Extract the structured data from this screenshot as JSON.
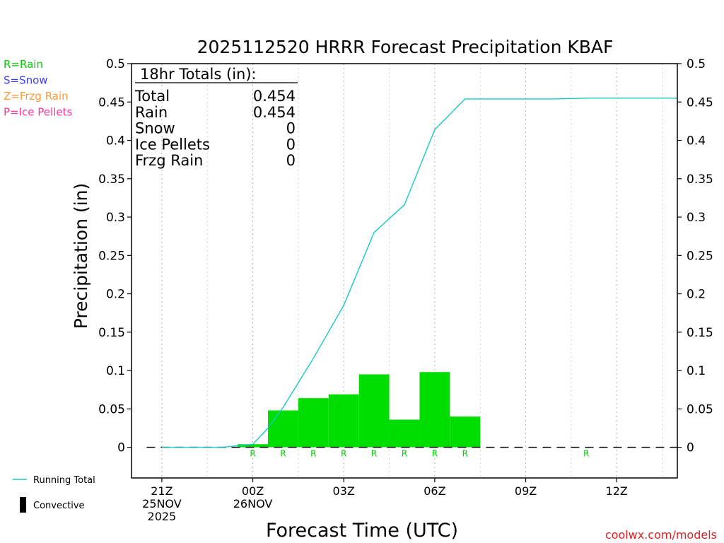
{
  "chart_data": {
    "type": "bar",
    "title": "2025112520 HRRR Forecast Precipitation KBAF",
    "ylabel": "Precipitation (in)",
    "xlabel": "Forecast Time (UTC)",
    "ylim": [
      -0.04,
      0.5
    ],
    "y_ticks": [
      "0.5",
      "0.45",
      "0.4",
      "0.35",
      "0.3",
      "0.25",
      "0.2",
      "0.15",
      "0.1",
      "0.05",
      "0"
    ],
    "y_tick_values": [
      0.5,
      0.45,
      0.4,
      0.35,
      0.3,
      0.25,
      0.2,
      0.15,
      0.1,
      0.05,
      0
    ],
    "x_ticks": [
      {
        "hour": 0,
        "lines": [
          "21Z",
          "25NOV",
          "2025"
        ]
      },
      {
        "hour": 3,
        "lines": [
          "00Z",
          "26NOV"
        ]
      },
      {
        "hour": 6,
        "lines": [
          "03Z"
        ]
      },
      {
        "hour": 9,
        "lines": [
          "06Z"
        ]
      },
      {
        "hour": 12,
        "lines": [
          "09Z"
        ]
      },
      {
        "hour": 15,
        "lines": [
          "12Z"
        ]
      }
    ],
    "x_range_hours": [
      -1,
      17
    ],
    "bars": [
      {
        "start": 2.5,
        "end": 3.5,
        "value": 0.004,
        "type": "R"
      },
      {
        "start": 3.5,
        "end": 4.5,
        "value": 0.048,
        "type": "R"
      },
      {
        "start": 4.5,
        "end": 5.5,
        "value": 0.064,
        "type": "R"
      },
      {
        "start": 5.5,
        "end": 6.5,
        "value": 0.069,
        "type": "R"
      },
      {
        "start": 6.5,
        "end": 7.5,
        "value": 0.095,
        "type": "R"
      },
      {
        "start": 7.5,
        "end": 8.5,
        "value": 0.036,
        "type": "R"
      },
      {
        "start": 8.5,
        "end": 9.5,
        "value": 0.098,
        "type": "R"
      },
      {
        "start": 9.5,
        "end": 10.5,
        "value": 0.04,
        "type": "R"
      }
    ],
    "precip_type_markers": [
      {
        "hour": 3,
        "label": "R"
      },
      {
        "hour": 4,
        "label": "R"
      },
      {
        "hour": 5,
        "label": "R"
      },
      {
        "hour": 6,
        "label": "R"
      },
      {
        "hour": 7,
        "label": "R"
      },
      {
        "hour": 8,
        "label": "R"
      },
      {
        "hour": 9,
        "label": "R"
      },
      {
        "hour": 10,
        "label": "R"
      },
      {
        "hour": 14,
        "label": "R"
      }
    ],
    "running_total": {
      "name": "Running Total",
      "x": [
        0,
        1,
        2,
        2.5,
        3,
        3.5,
        4,
        5,
        6,
        7,
        8,
        9,
        10,
        11,
        12,
        13,
        14,
        15,
        16,
        17
      ],
      "y": [
        0,
        0,
        0,
        0.002,
        0.004,
        0.025,
        0.052,
        0.116,
        0.185,
        0.28,
        0.316,
        0.414,
        0.454,
        0.454,
        0.454,
        0.454,
        0.455,
        0.455,
        0.455,
        0.455
      ]
    },
    "totals_box": {
      "header": "18hr Totals (in):",
      "rows": [
        {
          "label": "Total",
          "value": "0.454"
        },
        {
          "label": "Rain",
          "value": "0.454"
        },
        {
          "label": "Snow",
          "value": "0"
        },
        {
          "label": "Ice Pellets",
          "value": "0"
        },
        {
          "label": "Frzg Rain",
          "value": "0"
        }
      ]
    },
    "type_legend": [
      {
        "label": "R=Rain",
        "color": "#00cc00"
      },
      {
        "label": "S=Snow",
        "color": "#3c3cff"
      },
      {
        "label": "Z=Frzg Rain",
        "color": "#ff9933"
      },
      {
        "label": "P=Ice Pellets",
        "color": "#ff3399"
      }
    ],
    "bottom_legend": [
      {
        "label": "Running Total",
        "color": "#19c8c8",
        "kind": "line"
      },
      {
        "label": "Convective",
        "color": "#000000",
        "kind": "bar"
      }
    ],
    "grid": "vertical dotted at tick hours",
    "bar_color": "#00dd00",
    "line_color": "#19c8c8",
    "marker_color": "#00cc00"
  },
  "credit": "coolwx.com/models"
}
